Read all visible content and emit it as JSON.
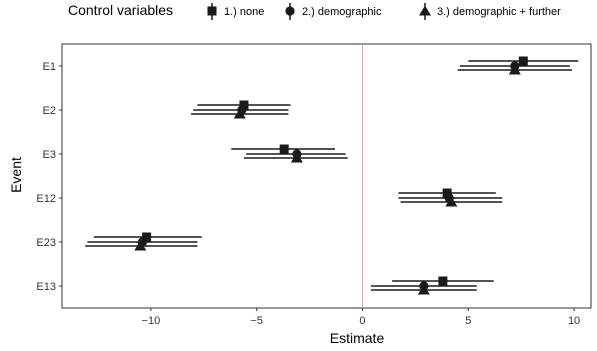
{
  "chart_data": {
    "type": "scatter",
    "xlabel": "Estimate",
    "ylabel": "Event",
    "xlim": [
      -14.2,
      10.8
    ],
    "x_ticks": [
      -10,
      -5,
      0,
      5,
      10
    ],
    "x_tick_labels": [
      "−10",
      "−5",
      "0",
      "5",
      "10"
    ],
    "categories": [
      "E1",
      "E2",
      "E3",
      "E12",
      "E23",
      "E13"
    ],
    "reference_line": {
      "x": 0,
      "color": "#e8a0a0"
    },
    "legend": {
      "title": "Control variables",
      "position": "top",
      "entries": [
        "1.) none",
        "2.) demographic",
        "3.) demographic + further"
      ],
      "markers": [
        "square",
        "circle",
        "triangle"
      ]
    },
    "grid": false,
    "series": [
      {
        "name": "1.) none",
        "marker": "square",
        "points": [
          {
            "category": "E1",
            "estimate": 7.6,
            "ci": [
              5.0,
              10.2
            ]
          },
          {
            "category": "E2",
            "estimate": -5.6,
            "ci": [
              -7.8,
              -3.4
            ]
          },
          {
            "category": "E3",
            "estimate": -3.7,
            "ci": [
              -6.2,
              -1.3
            ]
          },
          {
            "category": "E12",
            "estimate": 4.0,
            "ci": [
              1.7,
              6.3
            ]
          },
          {
            "category": "E23",
            "estimate": -10.2,
            "ci": [
              -12.7,
              -7.6
            ]
          },
          {
            "category": "E13",
            "estimate": 3.8,
            "ci": [
              1.4,
              6.2
            ]
          }
        ]
      },
      {
        "name": "2.) demographic",
        "marker": "circle",
        "points": [
          {
            "category": "E1",
            "estimate": 7.2,
            "ci": [
              4.6,
              9.8
            ]
          },
          {
            "category": "E2",
            "estimate": -5.7,
            "ci": [
              -8.0,
              -3.5
            ]
          },
          {
            "category": "E3",
            "estimate": -3.1,
            "ci": [
              -5.5,
              -0.8
            ]
          },
          {
            "category": "E12",
            "estimate": 4.1,
            "ci": [
              1.7,
              6.6
            ]
          },
          {
            "category": "E23",
            "estimate": -10.4,
            "ci": [
              -13.0,
              -7.8
            ]
          },
          {
            "category": "E13",
            "estimate": 2.9,
            "ci": [
              0.4,
              5.4
            ]
          }
        ]
      },
      {
        "name": "3.) demographic + further",
        "marker": "triangle",
        "points": [
          {
            "category": "E1",
            "estimate": 7.2,
            "ci": [
              4.5,
              9.9
            ]
          },
          {
            "category": "E2",
            "estimate": -5.8,
            "ci": [
              -8.1,
              -3.5
            ]
          },
          {
            "category": "E3",
            "estimate": -3.1,
            "ci": [
              -5.6,
              -0.7
            ]
          },
          {
            "category": "E12",
            "estimate": 4.2,
            "ci": [
              1.8,
              6.6
            ]
          },
          {
            "category": "E23",
            "estimate": -10.5,
            "ci": [
              -13.1,
              -7.8
            ]
          },
          {
            "category": "E13",
            "estimate": 2.9,
            "ci": [
              0.4,
              5.4
            ]
          }
        ]
      }
    ],
    "colors": {
      "marker": "#1a1a1a",
      "ci_line": "#1a1a1a",
      "panel_border": "#333333",
      "text": "#333333"
    }
  }
}
